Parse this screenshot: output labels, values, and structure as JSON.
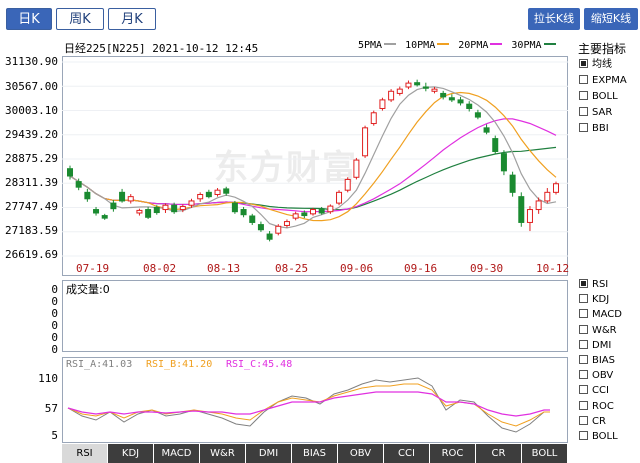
{
  "tabs": [
    {
      "label": "日K",
      "active": true
    },
    {
      "label": "周K",
      "active": false
    },
    {
      "label": "月K",
      "active": false
    }
  ],
  "right_buttons": {
    "stretch": "拉长K线",
    "shorten": "缩短K线"
  },
  "header": {
    "title": "日经225[N225] 2021-10-12 12:45",
    "ma": [
      {
        "label": "5PMA",
        "color": "#a0a0a0"
      },
      {
        "label": "10PMA",
        "color": "#f0a020"
      },
      {
        "label": "20PMA",
        "color": "#e030e0"
      },
      {
        "label": "30PMA",
        "color": "#208040"
      }
    ]
  },
  "watermark": "东方财富",
  "colors": {
    "up": "#e02020",
    "down": "#1a8a30",
    "axis_date": "#b01818"
  },
  "main_indicators": {
    "title": "主要指标",
    "items": [
      {
        "label": "均线",
        "checked": true
      },
      {
        "label": "EXPMA",
        "checked": false
      },
      {
        "label": "BOLL",
        "checked": false
      },
      {
        "label": "SAR",
        "checked": false
      },
      {
        "label": "BBI",
        "checked": false
      }
    ]
  },
  "sub_indicators": {
    "items": [
      {
        "label": "RSI",
        "checked": true
      },
      {
        "label": "KDJ",
        "checked": false
      },
      {
        "label": "MACD",
        "checked": false
      },
      {
        "label": "W&R",
        "checked": false
      },
      {
        "label": "DMI",
        "checked": false
      },
      {
        "label": "BIAS",
        "checked": false
      },
      {
        "label": "OBV",
        "checked": false
      },
      {
        "label": "CCI",
        "checked": false
      },
      {
        "label": "ROC",
        "checked": false
      },
      {
        "label": "CR",
        "checked": false
      },
      {
        "label": "BOLL",
        "checked": false
      }
    ]
  },
  "volume": {
    "label": "成交量:0",
    "yticks": [
      "0",
      "0",
      "0",
      "0",
      "0",
      "0"
    ]
  },
  "rsi": {
    "legend": [
      {
        "label": "RSI_A:41.03",
        "color": "#808080"
      },
      {
        "label": "RSI_B:41.20",
        "color": "#f0a020"
      },
      {
        "label": "RSI_C:45.48",
        "color": "#e030e0"
      }
    ],
    "yticks": [
      "110",
      "57",
      "5"
    ]
  },
  "bottom_tabs": [
    "RSI",
    "KDJ",
    "MACD",
    "W&R",
    "DMI",
    "BIAS",
    "OBV",
    "CCI",
    "ROC",
    "CR",
    "BOLL"
  ],
  "chart_data": {
    "type": "candlestick",
    "title": "日经225[N225] 2021-10-12 12:45",
    "yticks": [
      "31130.90",
      "30567.00",
      "30003.10",
      "29439.20",
      "28875.29",
      "28311.39",
      "27747.49",
      "27183.59",
      "26619.69"
    ],
    "ylim": [
      26619.69,
      31130.9
    ],
    "xticks": [
      "07-19",
      "08-02",
      "08-13",
      "08-25",
      "09-06",
      "09-16",
      "09-30",
      "10-12"
    ],
    "candles": [
      [
        28650,
        28480,
        28720,
        28400
      ],
      [
        28350,
        28220,
        28420,
        28150
      ],
      [
        28100,
        27950,
        28180,
        27880
      ],
      [
        27700,
        27620,
        27760,
        27560
      ],
      [
        27560,
        27500,
        27600,
        27460
      ],
      [
        27850,
        27720,
        27920,
        27650
      ],
      [
        28100,
        27900,
        28180,
        27860
      ],
      [
        27900,
        28000,
        28060,
        27840
      ],
      [
        27620,
        27680,
        27720,
        27560
      ],
      [
        27700,
        27520,
        27760,
        27480
      ],
      [
        27750,
        27630,
        27800,
        27580
      ],
      [
        27700,
        27800,
        27840,
        27620
      ],
      [
        27800,
        27650,
        27860,
        27600
      ],
      [
        27700,
        27770,
        27820,
        27640
      ],
      [
        27800,
        27900,
        27950,
        27740
      ],
      [
        27950,
        28050,
        28100,
        27880
      ],
      [
        28100,
        28000,
        28160,
        27960
      ],
      [
        28050,
        28150,
        28200,
        28000
      ],
      [
        28180,
        28080,
        28230,
        28020
      ],
      [
        27850,
        27650,
        27900,
        27600
      ],
      [
        27700,
        27580,
        27760,
        27520
      ],
      [
        27550,
        27400,
        27600,
        27340
      ],
      [
        27350,
        27230,
        27420,
        27180
      ],
      [
        27130,
        27010,
        27200,
        26960
      ],
      [
        27150,
        27310,
        27360,
        27100
      ],
      [
        27330,
        27420,
        27470,
        27280
      ],
      [
        27500,
        27600,
        27650,
        27450
      ],
      [
        27620,
        27560,
        27680,
        27500
      ],
      [
        27600,
        27700,
        27740,
        27560
      ],
      [
        27700,
        27620,
        27760,
        27580
      ],
      [
        27650,
        27780,
        27820,
        27600
      ],
      [
        27850,
        28100,
        28150,
        27800
      ],
      [
        28150,
        28400,
        28450,
        28100
      ],
      [
        28450,
        28850,
        28900,
        28400
      ],
      [
        28950,
        29600,
        29650,
        28900
      ],
      [
        29700,
        29950,
        30000,
        29650
      ],
      [
        30050,
        30250,
        30300,
        30000
      ],
      [
        30250,
        30450,
        30500,
        30200
      ],
      [
        30400,
        30500,
        30560,
        30350
      ],
      [
        30550,
        30640,
        30700,
        30500
      ],
      [
        30650,
        30600,
        30720,
        30560
      ],
      [
        30550,
        30520,
        30650,
        30450
      ],
      [
        30450,
        30500,
        30550,
        30400
      ],
      [
        30400,
        30320,
        30460,
        30260
      ],
      [
        30300,
        30250,
        30380,
        30200
      ],
      [
        30250,
        30180,
        30320,
        30120
      ],
      [
        30150,
        30050,
        30220,
        29980
      ],
      [
        29950,
        29850,
        30020,
        29800
      ],
      [
        29600,
        29500,
        29680,
        29450
      ],
      [
        29350,
        29050,
        29420,
        28980
      ],
      [
        29000,
        28600,
        29080,
        28500
      ],
      [
        28500,
        28100,
        28580,
        28000
      ],
      [
        28000,
        27400,
        28100,
        27300
      ],
      [
        27400,
        27700,
        27780,
        27200
      ],
      [
        27700,
        27900,
        27980,
        27600
      ],
      [
        27900,
        28100,
        28200,
        27850
      ],
      [
        28100,
        28300,
        28350,
        28050
      ]
    ]
  }
}
